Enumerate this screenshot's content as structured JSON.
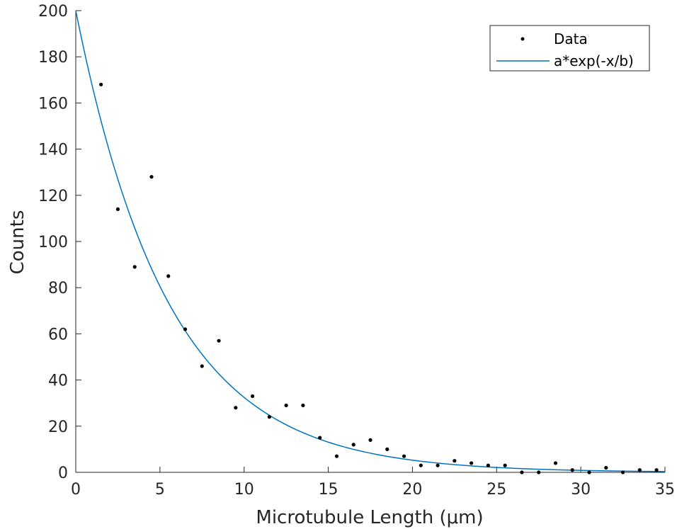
{
  "chart_data": {
    "type": "scatter",
    "xlabel": "Microtubule Length (μm)",
    "ylabel": "Counts",
    "xlim": [
      0,
      35
    ],
    "ylim": [
      0,
      200
    ],
    "xticks": [
      0,
      5,
      10,
      15,
      20,
      25,
      30,
      35
    ],
    "yticks": [
      0,
      20,
      40,
      60,
      80,
      100,
      120,
      140,
      160,
      180,
      200
    ],
    "grid": false,
    "legend_position": "top-right",
    "series": [
      {
        "name": "Data",
        "style": "markers",
        "color": "#000000",
        "x": [
          1.5,
          2.5,
          3.5,
          4.5,
          5.5,
          6.5,
          7.5,
          8.5,
          9.5,
          10.5,
          11.5,
          12.5,
          13.5,
          14.5,
          15.5,
          16.5,
          17.5,
          18.5,
          19.5,
          20.5,
          21.5,
          22.5,
          23.5,
          24.5,
          25.5,
          26.5,
          27.5,
          28.5,
          29.5,
          30.5,
          31.5,
          32.5,
          33.5,
          34.5
        ],
        "y": [
          168,
          114,
          89,
          128,
          85,
          62,
          46,
          57,
          28,
          33,
          24,
          29,
          29,
          15,
          7,
          12,
          14,
          10,
          7,
          3,
          3,
          5,
          4,
          3,
          3,
          0,
          0,
          4,
          1,
          0,
          2,
          0,
          1,
          1
        ]
      },
      {
        "name": "a*exp(-x/b)",
        "style": "line",
        "color": "#0072BD",
        "fit": {
          "a": 200,
          "b": 5.5
        }
      }
    ]
  }
}
